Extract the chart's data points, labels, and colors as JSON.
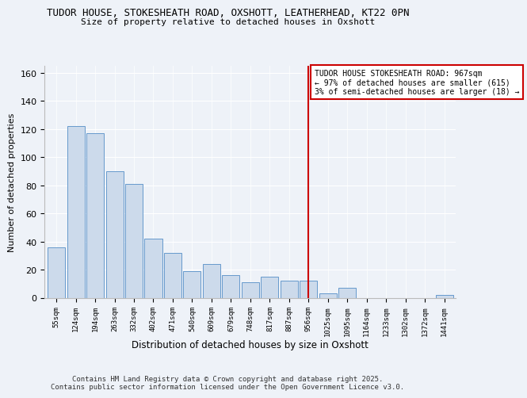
{
  "title1": "TUDOR HOUSE, STOKESHEATH ROAD, OXSHOTT, LEATHERHEAD, KT22 0PN",
  "title2": "Size of property relative to detached houses in Oxshott",
  "xlabel": "Distribution of detached houses by size in Oxshott",
  "ylabel": "Number of detached properties",
  "categories": [
    "55sqm",
    "124sqm",
    "194sqm",
    "263sqm",
    "332sqm",
    "402sqm",
    "471sqm",
    "540sqm",
    "609sqm",
    "679sqm",
    "748sqm",
    "817sqm",
    "887sqm",
    "956sqm",
    "1025sqm",
    "1095sqm",
    "1164sqm",
    "1233sqm",
    "1302sqm",
    "1372sqm",
    "1441sqm"
  ],
  "values": [
    36,
    122,
    117,
    90,
    81,
    42,
    32,
    19,
    24,
    16,
    11,
    15,
    12,
    12,
    3,
    7,
    0,
    0,
    0,
    0,
    2
  ],
  "bar_color": "#ccdaeb",
  "bar_edge_color": "#6699cc",
  "vline_x_index": 13,
  "vline_color": "#cc0000",
  "annotation_text": "TUDOR HOUSE STOKESHEATH ROAD: 967sqm\n← 97% of detached houses are smaller (615)\n3% of semi-detached houses are larger (18) →",
  "annotation_box_color": "#ffffff",
  "annotation_box_edge": "#cc0000",
  "ylim": [
    0,
    165
  ],
  "yticks": [
    0,
    20,
    40,
    60,
    80,
    100,
    120,
    140,
    160
  ],
  "footer": "Contains HM Land Registry data © Crown copyright and database right 2025.\nContains public sector information licensed under the Open Government Licence v3.0.",
  "bg_color": "#eef2f8",
  "plot_bg_color": "#eef2f8",
  "grid_color": "#ffffff"
}
